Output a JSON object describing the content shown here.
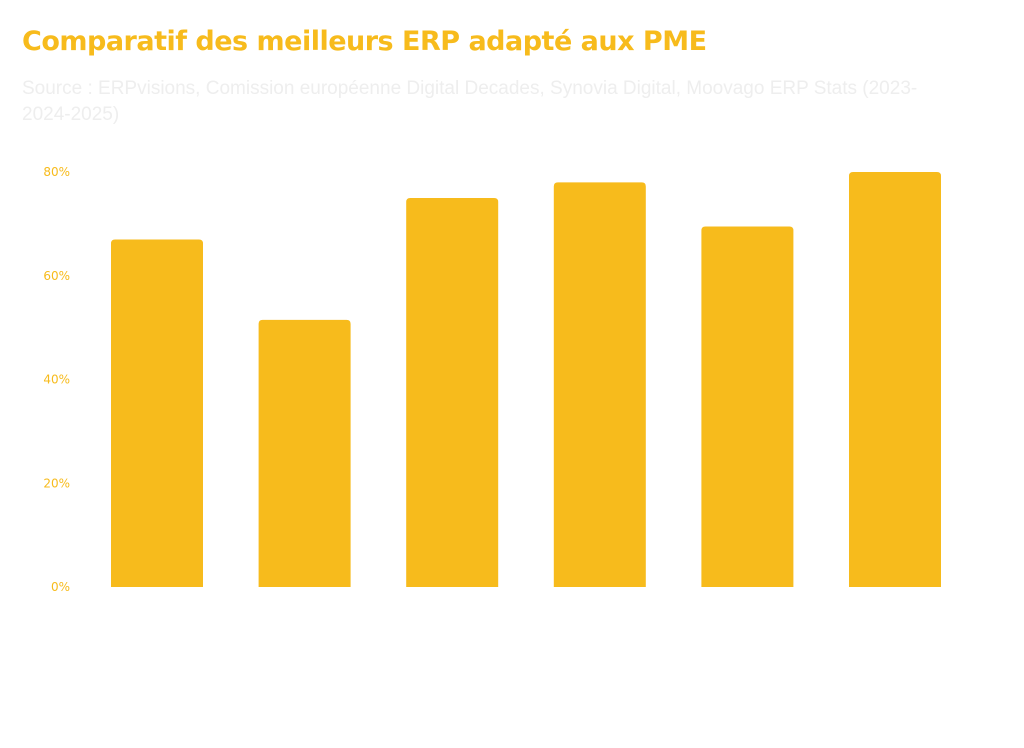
{
  "chart_data": {
    "type": "bar",
    "title": "Comparatif des meilleurs ERP adapté aux PME",
    "subtitle": "Source : ERPvisions, Comission européenne Digital Decades, Synovia Digital, Moovago ERP Stats (2023-2024-2025)",
    "xlabel": "",
    "ylabel": "",
    "categories": [
      "",
      "",
      "",
      "",
      "",
      ""
    ],
    "values": [
      67,
      51.5,
      75,
      78,
      69.5,
      80
    ],
    "ylim": [
      0,
      80
    ],
    "yticks": [
      "0%",
      "20%",
      "40%",
      "60%",
      "80%"
    ],
    "ytick_values": [
      0,
      20,
      40,
      60,
      80
    ],
    "grid": false,
    "bar_color": "#f7bb1c"
  }
}
